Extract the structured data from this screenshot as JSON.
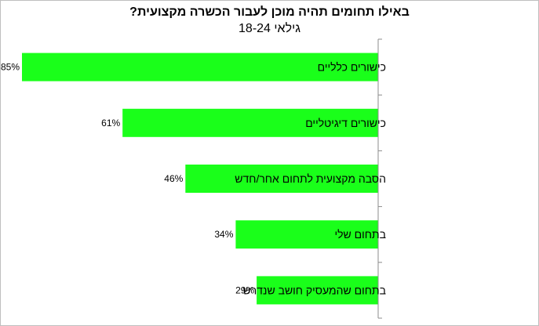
{
  "chart_data": {
    "type": "bar",
    "orientation": "horizontal",
    "title": "באילו תחומים תהיה מוכן לעבור הכשרה מקצועית?",
    "subtitle": "גילאי 18-24",
    "categories": [
      "כישורים כלליים",
      "כישורים דיגיטליים",
      "הסבה מקצועית לתחום אחר/חדש",
      "בתחום שלי",
      "בתחום שהמעסיק חושב שנדרש"
    ],
    "values": [
      85,
      61,
      46,
      34,
      29
    ],
    "value_labels": [
      "85%",
      "61%",
      "46%",
      "34%",
      "29%"
    ],
    "unit": "%",
    "xlim": [
      0,
      85
    ],
    "grid": false,
    "legend": "none",
    "axis_side": "right",
    "bar_color": "#1aff1a"
  }
}
